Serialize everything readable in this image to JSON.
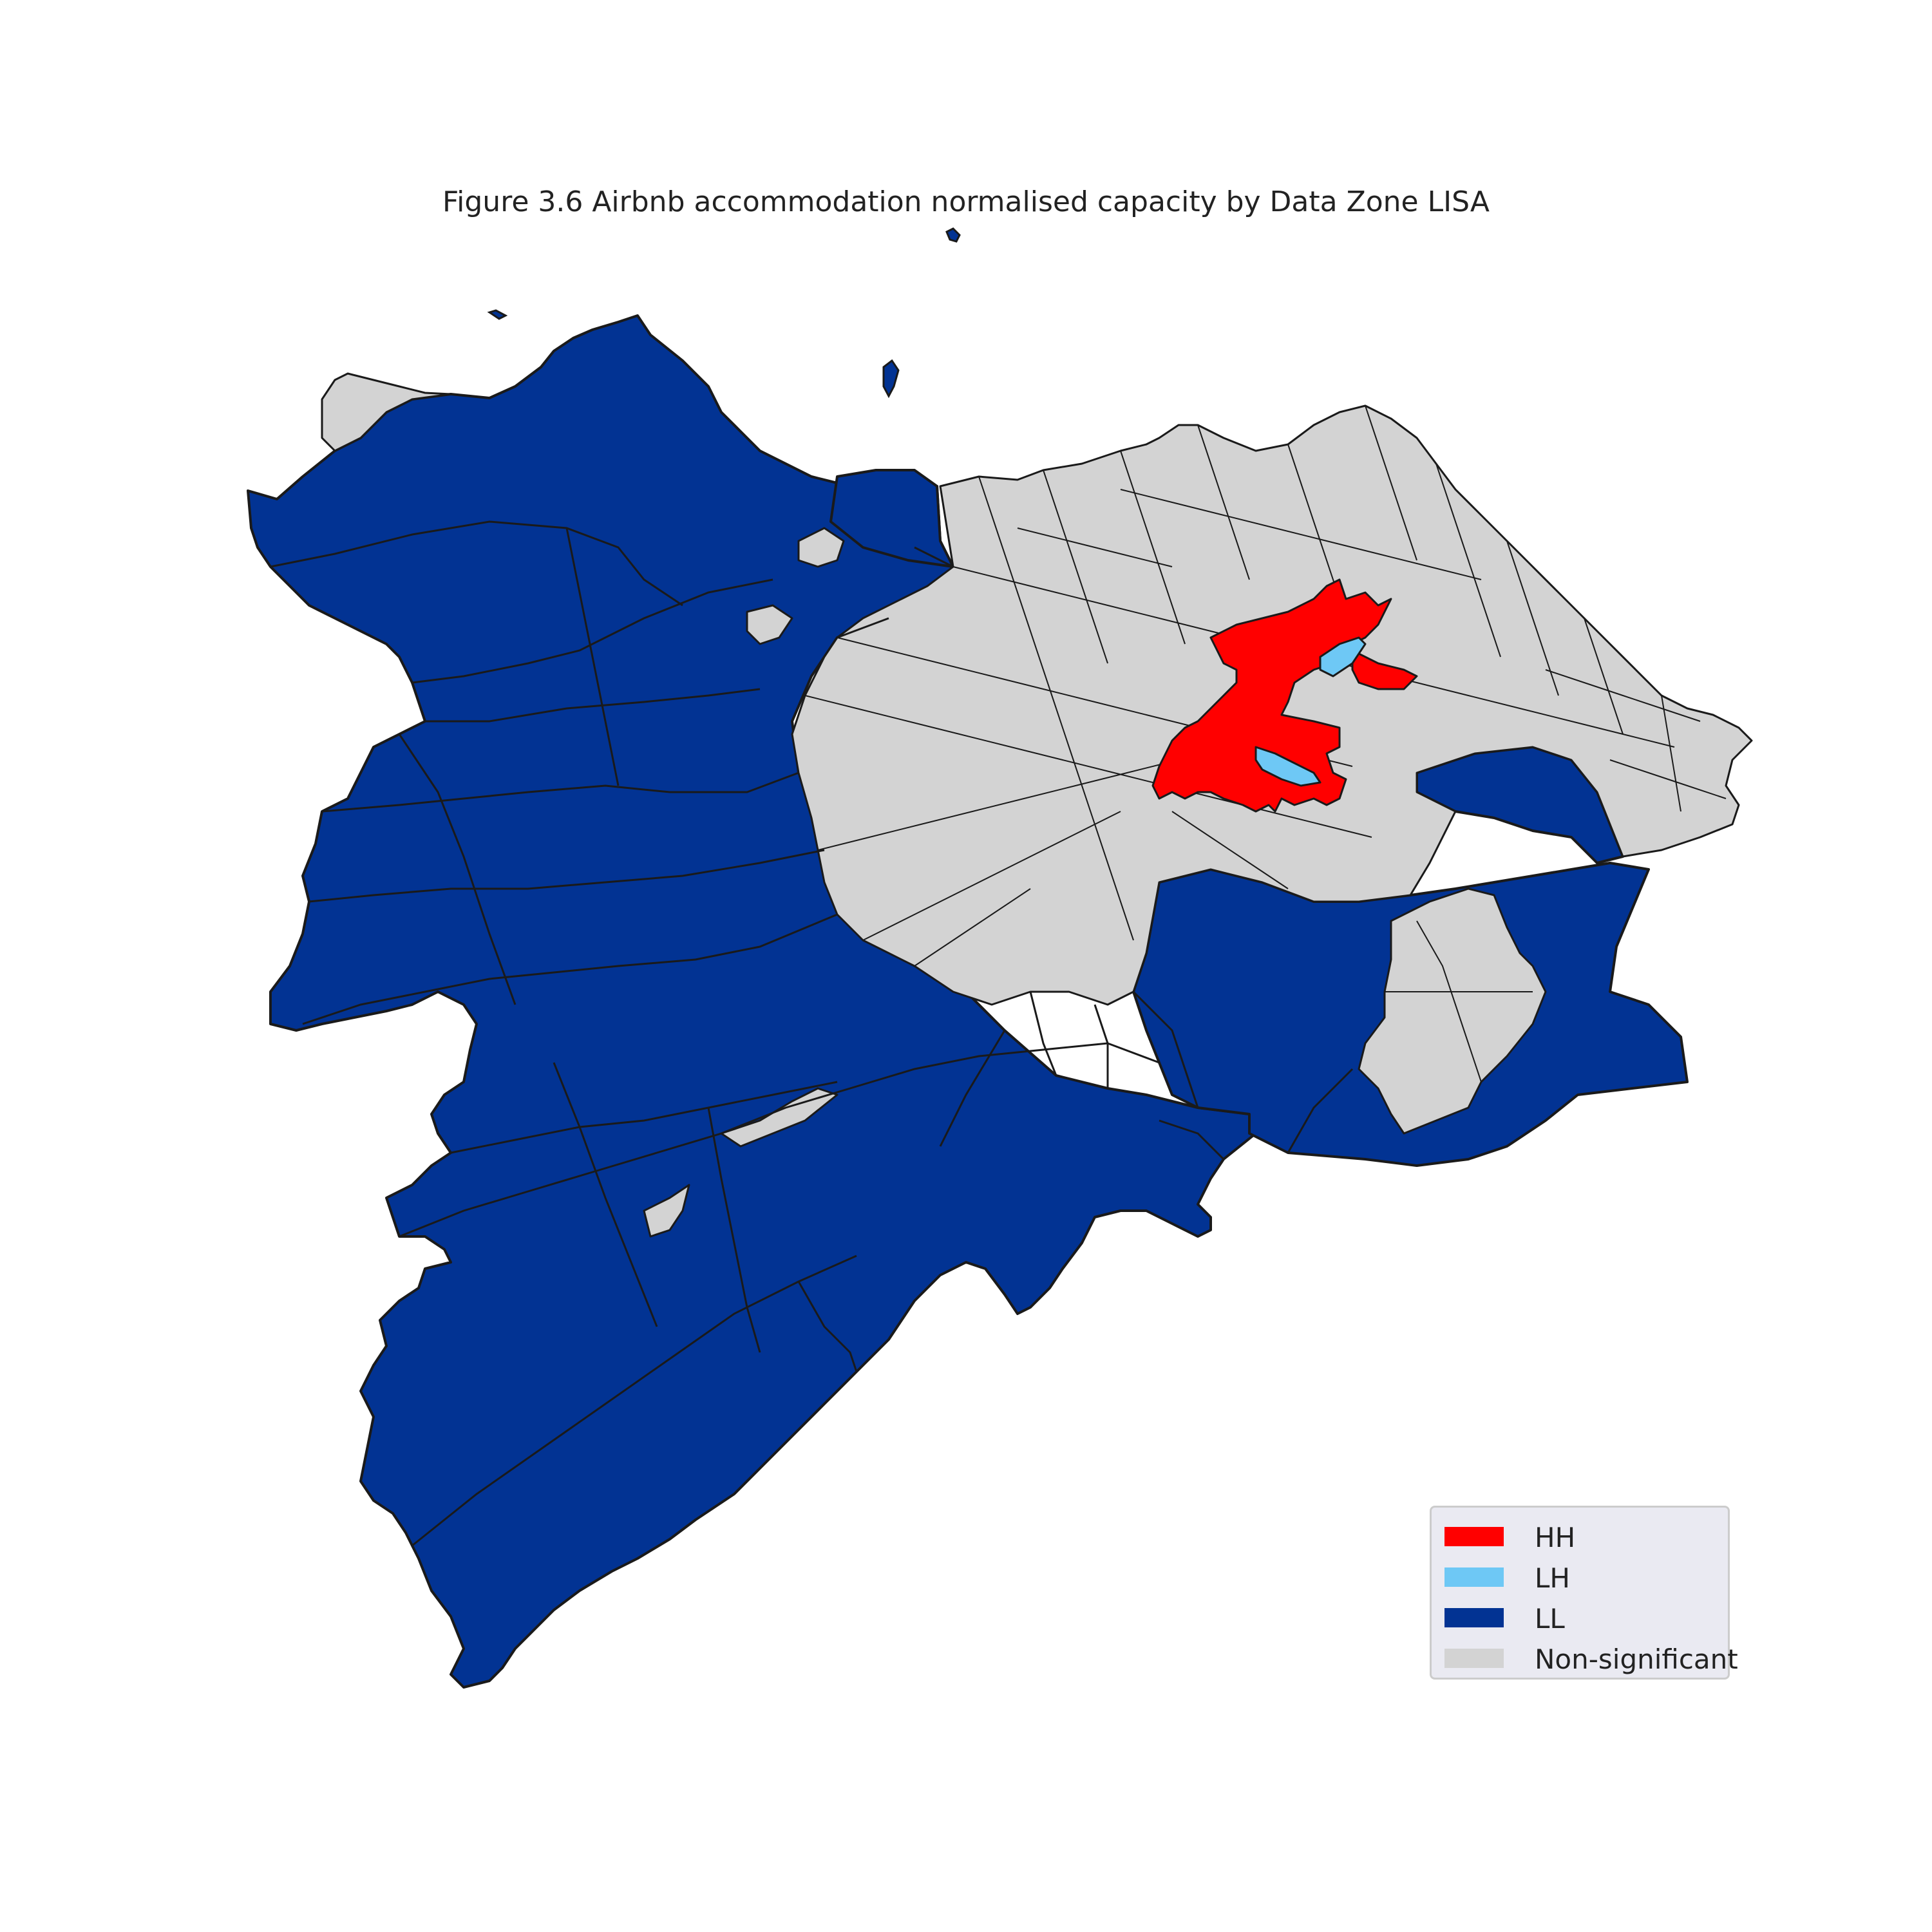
{
  "title": "Figure 3.6 Airbnb accommodation normalised capacity by Data Zone LISA",
  "colors": {
    "HH": "#ff0000",
    "LH": "#6ec8f5",
    "LL": "#023393",
    "Non-significant": "#d3d3d3",
    "boundary": "#1a1a1a"
  },
  "legend": {
    "items": [
      {
        "label": "HH",
        "color": "#ff0000"
      },
      {
        "label": "LH",
        "color": "#6ec8f5"
      },
      {
        "label": "LL",
        "color": "#023393"
      },
      {
        "label": "Non-significant",
        "color": "#d3d3d3"
      }
    ]
  }
}
